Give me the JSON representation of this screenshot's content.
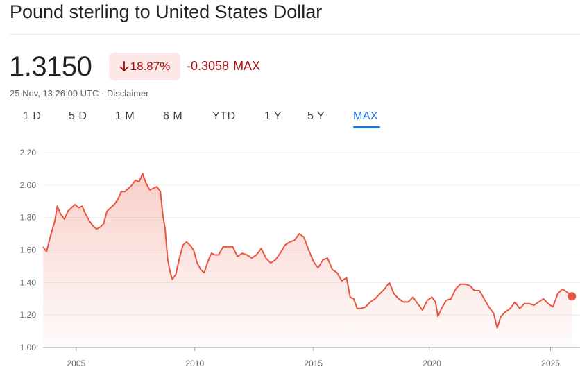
{
  "title": "Pound sterling to United States Dollar",
  "price": "1.3150",
  "change": {
    "percent": "18.87%",
    "direction": "down",
    "arrow_icon": "arrow-down-icon",
    "absolute": "-0.3058",
    "range_label": "MAX",
    "color": "#a50e0e",
    "badge_bg": "#fce8e6"
  },
  "timestamp": {
    "text": "25 Nov, 13:26:09 UTC · ",
    "disclaimer": "Disclaimer"
  },
  "tabs": [
    {
      "label": "1 D"
    },
    {
      "label": "5 D"
    },
    {
      "label": "1 M"
    },
    {
      "label": "6 M"
    },
    {
      "label": "YTD"
    },
    {
      "label": "1 Y"
    },
    {
      "label": "5 Y"
    },
    {
      "label": "MAX",
      "active": true
    }
  ],
  "chart_data": {
    "type": "area",
    "line_color": "#e8553e",
    "ylim": [
      1.0,
      2.2
    ],
    "y_ticks": [
      "2.20",
      "2.00",
      "1.80",
      "1.60",
      "1.40",
      "1.20",
      "1.00"
    ],
    "x_ticks": [
      "2005",
      "2010",
      "2015",
      "2020",
      "2025"
    ],
    "xlim": [
      2003.6,
      2025.95
    ],
    "grid": true,
    "last_point": {
      "x": 2025.9,
      "y": 1.315
    },
    "series": [
      {
        "x": [
          2003.6,
          2003.75,
          2003.9,
          2004.1,
          2004.2,
          2004.35,
          2004.5,
          2004.65,
          2004.8,
          2004.95,
          2005.1,
          2005.25,
          2005.4,
          2005.55,
          2005.7,
          2005.85,
          2006.0,
          2006.15,
          2006.3,
          2006.45,
          2006.6,
          2006.75,
          2006.9,
          2007.05,
          2007.2,
          2007.35,
          2007.5,
          2007.65,
          2007.8,
          2007.95,
          2008.1,
          2008.25,
          2008.4,
          2008.55,
          2008.65,
          2008.75,
          2008.85,
          2008.95,
          2009.05,
          2009.2,
          2009.35,
          2009.5,
          2009.65,
          2009.8,
          2009.95,
          2010.1,
          2010.25,
          2010.4,
          2010.55,
          2010.7,
          2010.85,
          2011.0,
          2011.2,
          2011.4,
          2011.6,
          2011.8,
          2012.0,
          2012.2,
          2012.4,
          2012.6,
          2012.8,
          2013.0,
          2013.2,
          2013.4,
          2013.6,
          2013.8,
          2014.0,
          2014.2,
          2014.4,
          2014.6,
          2014.8,
          2015.0,
          2015.2,
          2015.4,
          2015.6,
          2015.8,
          2016.0,
          2016.2,
          2016.4,
          2016.55,
          2016.7,
          2016.85,
          2017.0,
          2017.2,
          2017.4,
          2017.6,
          2017.8,
          2018.0,
          2018.2,
          2018.4,
          2018.6,
          2018.8,
          2019.0,
          2019.2,
          2019.4,
          2019.6,
          2019.8,
          2020.0,
          2020.15,
          2020.25,
          2020.4,
          2020.6,
          2020.8,
          2021.0,
          2021.2,
          2021.4,
          2021.6,
          2021.8,
          2022.0,
          2022.2,
          2022.4,
          2022.6,
          2022.75,
          2022.9,
          2023.1,
          2023.3,
          2023.5,
          2023.7,
          2023.9,
          2024.1,
          2024.3,
          2024.5,
          2024.7,
          2024.9,
          2025.1,
          2025.3,
          2025.5,
          2025.7,
          2025.9
        ],
        "y": [
          1.62,
          1.59,
          1.68,
          1.78,
          1.87,
          1.82,
          1.79,
          1.84,
          1.86,
          1.88,
          1.86,
          1.87,
          1.82,
          1.78,
          1.75,
          1.73,
          1.74,
          1.76,
          1.84,
          1.86,
          1.88,
          1.91,
          1.96,
          1.96,
          1.98,
          2.0,
          2.03,
          2.02,
          2.07,
          2.01,
          1.97,
          1.98,
          1.99,
          1.96,
          1.82,
          1.73,
          1.55,
          1.47,
          1.42,
          1.45,
          1.55,
          1.63,
          1.65,
          1.63,
          1.6,
          1.52,
          1.48,
          1.46,
          1.53,
          1.58,
          1.57,
          1.57,
          1.62,
          1.62,
          1.62,
          1.56,
          1.58,
          1.57,
          1.55,
          1.57,
          1.61,
          1.55,
          1.52,
          1.54,
          1.58,
          1.63,
          1.65,
          1.66,
          1.7,
          1.68,
          1.6,
          1.53,
          1.49,
          1.54,
          1.55,
          1.48,
          1.46,
          1.41,
          1.43,
          1.31,
          1.3,
          1.24,
          1.24,
          1.25,
          1.28,
          1.3,
          1.33,
          1.36,
          1.4,
          1.33,
          1.3,
          1.28,
          1.28,
          1.31,
          1.27,
          1.23,
          1.29,
          1.31,
          1.28,
          1.19,
          1.24,
          1.29,
          1.3,
          1.36,
          1.39,
          1.39,
          1.38,
          1.35,
          1.35,
          1.3,
          1.25,
          1.21,
          1.12,
          1.19,
          1.22,
          1.24,
          1.28,
          1.24,
          1.27,
          1.27,
          1.26,
          1.28,
          1.3,
          1.27,
          1.25,
          1.33,
          1.36,
          1.34,
          1.315
        ]
      }
    ]
  }
}
